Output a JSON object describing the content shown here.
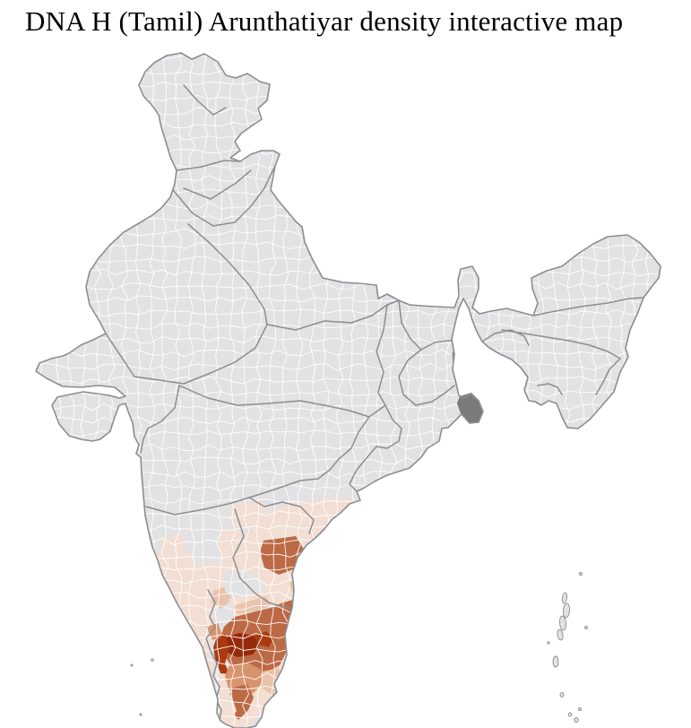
{
  "title": "DNA H (Tamil) Arunthatiyar density interactive map",
  "map": {
    "label": "India district-level density choropleth",
    "base_region_color": "#e2e2e4",
    "district_border_color": "#ffffff",
    "state_border_color": "#8d8d91",
    "coast_color": "#8d8d91",
    "highlight_district_color": "#7a7a7a",
    "palette": {
      "level_0": "#f2ded2",
      "level_1": "#e9c3ab",
      "level_2": "#d8946d",
      "level_3": "#bc6a45",
      "level_4": "#a83c10",
      "level_5": "#96290a"
    },
    "shaded_regions": [
      {
        "name": "kerala-coastal-belt",
        "level": 0
      },
      {
        "name": "goa-coastal-strip",
        "level": 0
      },
      {
        "name": "south-karnataka",
        "level": 0
      },
      {
        "name": "south-karnataka-inner",
        "level": 1
      },
      {
        "name": "telangana-patch",
        "level": 0
      },
      {
        "name": "coastal-andhra-belt",
        "level": 0
      },
      {
        "name": "rayalaseema",
        "level": 0
      },
      {
        "name": "prakasam-gap",
        "color_key": "base_region_color"
      },
      {
        "name": "guntur-district",
        "level": 3
      },
      {
        "name": "nellore-coastal-strip",
        "level": 1
      },
      {
        "name": "tn-north-belt",
        "level": 0
      },
      {
        "name": "tn-south-belt",
        "level": 0
      },
      {
        "name": "tn-outer-core",
        "level": 3
      },
      {
        "name": "tn-core-darkest",
        "level": 5
      },
      {
        "name": "tn-west-strip",
        "level": 4
      },
      {
        "name": "tn-core-east",
        "level": 4
      },
      {
        "name": "tn-inner-north",
        "level": 1
      },
      {
        "name": "tn-west-edge",
        "level": 2
      },
      {
        "name": "tn-south-central",
        "level": 2
      },
      {
        "name": "tn-south-strip",
        "level": 3
      },
      {
        "name": "tn-southeast",
        "level": 1
      },
      {
        "name": "tn-tip",
        "level": 0
      },
      {
        "name": "sundarbans-district",
        "color_key": "highlight_district_color"
      }
    ]
  }
}
